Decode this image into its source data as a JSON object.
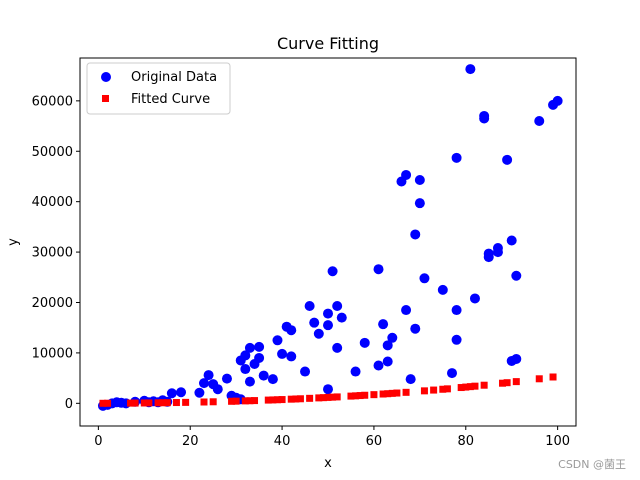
{
  "chart_data": {
    "type": "scatter",
    "title": "Curve Fitting",
    "xlabel": "x",
    "ylabel": "y",
    "xlim": [
      -4,
      104
    ],
    "ylim": [
      -4500,
      68500
    ],
    "xticks": [
      0,
      20,
      40,
      60,
      80,
      100
    ],
    "xtick_labels": [
      "0",
      "20",
      "40",
      "60",
      "80",
      "100"
    ],
    "yticks": [
      0,
      10000,
      20000,
      30000,
      40000,
      50000,
      60000
    ],
    "ytick_labels": [
      "0",
      "10000",
      "20000",
      "30000",
      "40000",
      "50000",
      "60000"
    ],
    "grid": false,
    "legend_position": "upper-left",
    "series": [
      {
        "name": "Original Data",
        "marker": "circle",
        "color": "#0000ff",
        "points": [
          [
            1,
            -500
          ],
          [
            2,
            -300
          ],
          [
            3,
            0
          ],
          [
            4,
            200
          ],
          [
            5,
            100
          ],
          [
            6,
            0
          ],
          [
            8,
            300
          ],
          [
            10,
            500
          ],
          [
            11,
            200
          ],
          [
            12,
            400
          ],
          [
            13,
            200
          ],
          [
            14,
            600
          ],
          [
            15,
            300
          ],
          [
            16,
            2000
          ],
          [
            18,
            2200
          ],
          [
            22,
            2100
          ],
          [
            23,
            4000
          ],
          [
            24,
            5600
          ],
          [
            25,
            3800
          ],
          [
            26,
            2800
          ],
          [
            28,
            4900
          ],
          [
            29,
            1500
          ],
          [
            30,
            1100
          ],
          [
            31,
            800
          ],
          [
            31,
            8500
          ],
          [
            32,
            9500
          ],
          [
            32,
            6800
          ],
          [
            33,
            4300
          ],
          [
            33,
            11000
          ],
          [
            34,
            7800
          ],
          [
            35,
            11200
          ],
          [
            35,
            9000
          ],
          [
            36,
            5500
          ],
          [
            38,
            4800
          ],
          [
            39,
            12500
          ],
          [
            40,
            9800
          ],
          [
            41,
            15200
          ],
          [
            42,
            14500
          ],
          [
            42,
            9300
          ],
          [
            45,
            6300
          ],
          [
            46,
            19300
          ],
          [
            47,
            16000
          ],
          [
            48,
            13800
          ],
          [
            50,
            15500
          ],
          [
            50,
            17800
          ],
          [
            50,
            2800
          ],
          [
            51,
            26200
          ],
          [
            52,
            19300
          ],
          [
            52,
            11000
          ],
          [
            53,
            17000
          ],
          [
            56,
            6300
          ],
          [
            58,
            12000
          ],
          [
            61,
            26600
          ],
          [
            61,
            7500
          ],
          [
            62,
            15700
          ],
          [
            63,
            11500
          ],
          [
            63,
            8300
          ],
          [
            64,
            13000
          ],
          [
            66,
            44000
          ],
          [
            67,
            45300
          ],
          [
            67,
            18500
          ],
          [
            68,
            4800
          ],
          [
            69,
            33500
          ],
          [
            69,
            14800
          ],
          [
            70,
            44300
          ],
          [
            70,
            39700
          ],
          [
            71,
            24800
          ],
          [
            75,
            22500
          ],
          [
            77,
            6000
          ],
          [
            78,
            48700
          ],
          [
            78,
            18500
          ],
          [
            78,
            12600
          ],
          [
            81,
            66300
          ],
          [
            82,
            20800
          ],
          [
            84,
            57000
          ],
          [
            84,
            56500
          ],
          [
            85,
            29700
          ],
          [
            85,
            29000
          ],
          [
            87,
            30800
          ],
          [
            87,
            30000
          ],
          [
            89,
            48300
          ],
          [
            90,
            32300
          ],
          [
            90,
            8400
          ],
          [
            91,
            8800
          ],
          [
            91,
            25300
          ],
          [
            96,
            56000
          ],
          [
            99,
            59200
          ],
          [
            100,
            60000
          ]
        ]
      },
      {
        "name": "Fitted Curve",
        "marker": "square",
        "color": "#ff0000",
        "xs": [
          1,
          2,
          7,
          8,
          10,
          11,
          13,
          14,
          15,
          17,
          19,
          23,
          25,
          29,
          30,
          32,
          33,
          34,
          37,
          38,
          39,
          40,
          42,
          43,
          44,
          46,
          48,
          49,
          50,
          51,
          52,
          55,
          56,
          57,
          58,
          60,
          62,
          63,
          64,
          65,
          67,
          71,
          73,
          75,
          76,
          79,
          80,
          81,
          82,
          84,
          88,
          89,
          91,
          96,
          99
        ],
        "coef": [
          0.002,
          0.3,
          3.44,
          0
        ]
      }
    ]
  },
  "watermark": "CSDN @菌王"
}
